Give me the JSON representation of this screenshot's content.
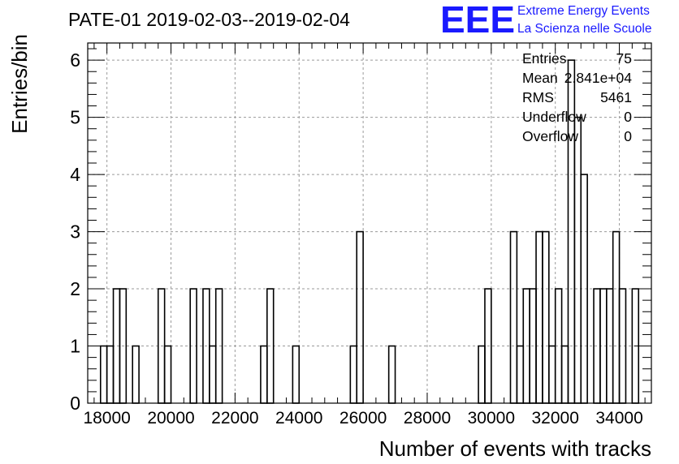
{
  "chart_data": {
    "type": "histogram",
    "title": "PATE-01 2019-02-03--2019-02-04",
    "xlabel": "Number of events with tracks",
    "ylabel": "Entries/bin",
    "xlim": [
      17400,
      35000
    ],
    "ylim": [
      0,
      6.3
    ],
    "bin_width": 200,
    "grid": true,
    "x_ticks": [
      18000,
      20000,
      22000,
      24000,
      26000,
      28000,
      30000,
      32000,
      34000
    ],
    "x_tick_labels": [
      "18000",
      "20000",
      "22000",
      "24000",
      "26000",
      "28000",
      "30000",
      "32000",
      "34000"
    ],
    "y_ticks": [
      0,
      1,
      2,
      3,
      4,
      5,
      6
    ],
    "y_tick_labels": [
      "0",
      "1",
      "2",
      "3",
      "4",
      "5",
      "6"
    ],
    "bins": [
      {
        "low": 17800,
        "count": 1
      },
      {
        "low": 18000,
        "count": 1
      },
      {
        "low": 18200,
        "count": 2
      },
      {
        "low": 18400,
        "count": 2
      },
      {
        "low": 18800,
        "count": 1
      },
      {
        "low": 19600,
        "count": 2
      },
      {
        "low": 19800,
        "count": 1
      },
      {
        "low": 20600,
        "count": 2
      },
      {
        "low": 21000,
        "count": 2
      },
      {
        "low": 21200,
        "count": 1
      },
      {
        "low": 21400,
        "count": 2
      },
      {
        "low": 22800,
        "count": 1
      },
      {
        "low": 23000,
        "count": 2
      },
      {
        "low": 23800,
        "count": 1
      },
      {
        "low": 25600,
        "count": 1
      },
      {
        "low": 25800,
        "count": 3
      },
      {
        "low": 26800,
        "count": 1
      },
      {
        "low": 29600,
        "count": 1
      },
      {
        "low": 29800,
        "count": 2
      },
      {
        "low": 30600,
        "count": 3
      },
      {
        "low": 30800,
        "count": 1
      },
      {
        "low": 31000,
        "count": 2
      },
      {
        "low": 31200,
        "count": 2
      },
      {
        "low": 31400,
        "count": 3
      },
      {
        "low": 31600,
        "count": 3
      },
      {
        "low": 31800,
        "count": 1
      },
      {
        "low": 32000,
        "count": 2
      },
      {
        "low": 32200,
        "count": 1
      },
      {
        "low": 32400,
        "count": 6
      },
      {
        "low": 32600,
        "count": 5
      },
      {
        "low": 32800,
        "count": 4
      },
      {
        "low": 33200,
        "count": 2
      },
      {
        "low": 33400,
        "count": 2
      },
      {
        "low": 33600,
        "count": 2
      },
      {
        "low": 33800,
        "count": 3
      },
      {
        "low": 34000,
        "count": 2
      },
      {
        "low": 34400,
        "count": 2
      }
    ],
    "stats": [
      {
        "label": "Entries",
        "value": "75"
      },
      {
        "label": "Mean",
        "value": "2.841e+04"
      },
      {
        "label": "RMS",
        "value": "5461"
      },
      {
        "label": "Underflow",
        "value": "0"
      },
      {
        "label": "Overflow",
        "value": "0"
      }
    ]
  },
  "logo": {
    "text": "EEE",
    "line1": "Extreme Energy Events",
    "line2": "La Scienza nelle Scuole",
    "color": "#1a1aff"
  },
  "colors": {
    "line": "#000000",
    "grid": "#9a9a9a"
  }
}
